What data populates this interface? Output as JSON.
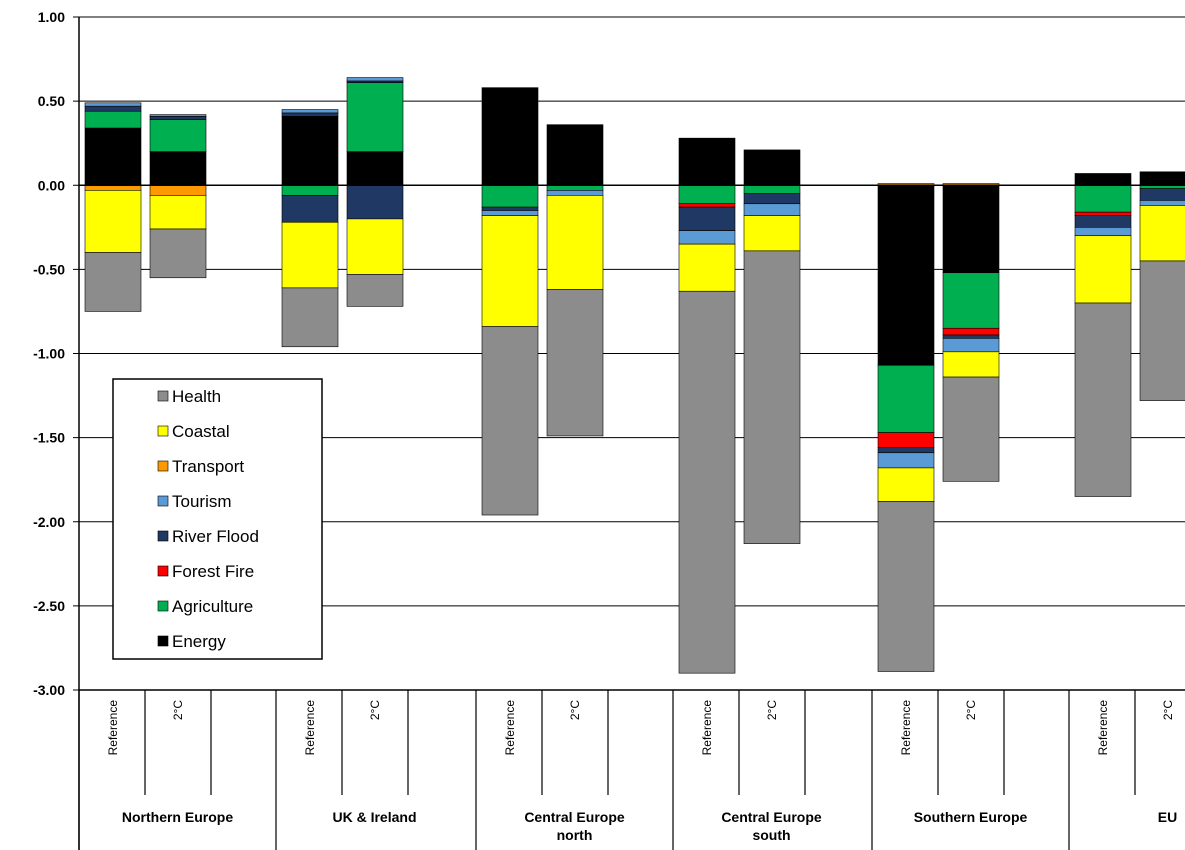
{
  "chart_data": {
    "type": "bar",
    "stacked": true,
    "ylim": [
      -3.0,
      1.0
    ],
    "yticks": [
      "1.00",
      "0.50",
      "0.00",
      "-0.50",
      "-1.00",
      "-1.50",
      "-2.00",
      "-2.50",
      "-3.00"
    ],
    "grid": true,
    "legend_position": "bottom-left",
    "legend": [
      {
        "name": "Health",
        "color": "#8c8c8c"
      },
      {
        "name": "Coastal",
        "color": "#ffff00"
      },
      {
        "name": "Transport",
        "color": "#ff9900"
      },
      {
        "name": "Tourism",
        "color": "#5b9bd5"
      },
      {
        "name": "River Flood",
        "color": "#1f3864"
      },
      {
        "name": "Forest Fire",
        "color": "#ff0000"
      },
      {
        "name": "Agriculture",
        "color": "#00b050"
      },
      {
        "name": "Energy",
        "color": "#000000"
      }
    ],
    "groups": [
      "Northern Europe",
      "UK & Ireland",
      "Central Europe north",
      "Central Europe south",
      "Southern Europe",
      "EU"
    ],
    "scenarios": [
      "Reference",
      "2°C"
    ],
    "bars": [
      {
        "group": "Northern Europe",
        "scenario": "Reference",
        "values": {
          "Energy": 0.34,
          "Agriculture": 0.1,
          "River Flood": 0.03,
          "Tourism": 0.02,
          "Transport": -0.03,
          "Coastal": -0.37,
          "Health": -0.35
        }
      },
      {
        "group": "Northern Europe",
        "scenario": "2°C",
        "values": {
          "Energy": 0.2,
          "Agriculture": 0.19,
          "River Flood": 0.02,
          "Tourism": 0.01,
          "Transport": -0.06,
          "Coastal": -0.2,
          "Health": -0.29
        }
      },
      {
        "group": "UK & Ireland",
        "scenario": "Reference",
        "values": {
          "Energy": 0.41,
          "Tourism": 0.02,
          "River Flood": 0.02,
          "Agriculture": -0.06,
          "River Flood_neg": -0.16,
          "Coastal": -0.39,
          "Health": -0.35
        }
      },
      {
        "group": "UK & Ireland",
        "scenario": "2°C",
        "values": {
          "Energy": 0.2,
          "Agriculture": 0.41,
          "Tourism": 0.02,
          "River Flood": 0.01,
          "River Flood_neg": -0.2,
          "Coastal": -0.33,
          "Health": -0.19
        }
      },
      {
        "group": "Central Europe north",
        "scenario": "Reference",
        "values": {
          "Energy": 0.58,
          "Agriculture": -0.13,
          "River Flood": -0.02,
          "Tourism": -0.03,
          "Coastal": -0.66,
          "Health": -1.12
        }
      },
      {
        "group": "Central Europe north",
        "scenario": "2°C",
        "values": {
          "Energy": 0.36,
          "Agriculture": -0.03,
          "Tourism": -0.03,
          "Coastal": -0.56,
          "Health": -0.87
        }
      },
      {
        "group": "Central Europe south",
        "scenario": "Reference",
        "values": {
          "Energy": 0.28,
          "Agriculture": -0.11,
          "Forest Fire": -0.02,
          "River Flood": -0.14,
          "Tourism": -0.08,
          "Coastal": -0.28,
          "Health": -2.27
        }
      },
      {
        "group": "Central Europe south",
        "scenario": "2°C",
        "values": {
          "Energy": 0.21,
          "Agriculture": -0.05,
          "River Flood": -0.06,
          "Tourism": -0.07,
          "Coastal": -0.21,
          "Health": -1.74
        }
      },
      {
        "group": "Southern Europe",
        "scenario": "Reference",
        "values": {
          "Transport": 0.01,
          "Energy": -1.07,
          "Agriculture": -0.4,
          "Forest Fire": -0.09,
          "River Flood": -0.03,
          "Tourism": -0.09,
          "Coastal": -0.2,
          "Health": -1.01
        }
      },
      {
        "group": "Southern Europe",
        "scenario": "2°C",
        "values": {
          "Transport": 0.01,
          "Energy": -0.52,
          "Agriculture": -0.33,
          "Forest Fire": -0.04,
          "River Flood": -0.02,
          "Tourism": -0.08,
          "Coastal": -0.15,
          "Health": -0.62
        }
      },
      {
        "group": "EU",
        "scenario": "Reference",
        "values": {
          "Energy": 0.07,
          "Agriculture": -0.16,
          "Forest Fire": -0.02,
          "River Flood": -0.07,
          "Tourism": -0.05,
          "Coastal": -0.4,
          "Health": -1.15
        }
      },
      {
        "group": "EU",
        "scenario": "2°C",
        "values": {
          "Energy": 0.08,
          "Agriculture": -0.02,
          "River Flood": -0.07,
          "Tourism": -0.03,
          "Coastal": -0.33,
          "Health": -0.83
        }
      }
    ]
  }
}
